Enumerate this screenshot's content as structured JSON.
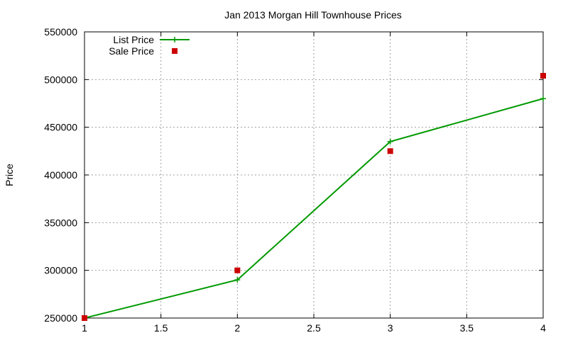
{
  "chart_data": {
    "type": "line",
    "title": "Jan 2013 Morgan Hill Townhouse Prices",
    "xlabel": "",
    "ylabel": "Price",
    "xlim": [
      1,
      4
    ],
    "ylim": [
      250000,
      550000
    ],
    "xticks": [
      "1",
      "1.5",
      "2",
      "2.5",
      "3",
      "3.5",
      "4"
    ],
    "yticks": [
      "250000",
      "300000",
      "350000",
      "400000",
      "450000",
      "500000",
      "550000"
    ],
    "grid": true,
    "legend_position": "top-left",
    "series": [
      {
        "name": "List Price",
        "style": "line-with-plus-markers",
        "color": "#009900",
        "x": [
          1,
          2,
          3,
          4
        ],
        "y": [
          250000,
          290000,
          435000,
          480000
        ]
      },
      {
        "name": "Sale Price",
        "style": "square-markers",
        "color": "#cc0000",
        "x": [
          1,
          2,
          3,
          4
        ],
        "y": [
          250000,
          300000,
          425000,
          504000
        ]
      }
    ]
  }
}
